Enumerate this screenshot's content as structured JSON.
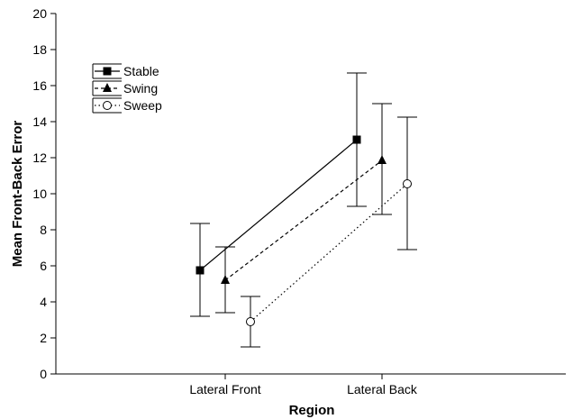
{
  "chart_data": {
    "type": "line",
    "xlabel": "Region",
    "ylabel": "Mean Front-Back Error",
    "categories": [
      "Lateral Front",
      "Lateral Back"
    ],
    "ylim": [
      0,
      20
    ],
    "yticks": [
      0,
      2,
      4,
      6,
      8,
      10,
      12,
      14,
      16,
      18,
      20
    ],
    "grid": false,
    "legend_position": "top-left",
    "series": [
      {
        "name": "Stable",
        "marker": "filled-square",
        "line_style": "solid",
        "values": [
          5.75,
          13.0
        ],
        "error_low": [
          3.2,
          9.3
        ],
        "error_high": [
          8.35,
          16.7
        ]
      },
      {
        "name": "Swing",
        "marker": "filled-triangle",
        "line_style": "dashed",
        "values": [
          5.2,
          11.85
        ],
        "error_low": [
          3.4,
          8.85
        ],
        "error_high": [
          7.05,
          15.0
        ]
      },
      {
        "name": "Sweep",
        "marker": "open-circle",
        "line_style": "dotted",
        "values": [
          2.9,
          10.55
        ],
        "error_low": [
          1.5,
          6.9
        ],
        "error_high": [
          4.3,
          14.25
        ]
      }
    ]
  }
}
